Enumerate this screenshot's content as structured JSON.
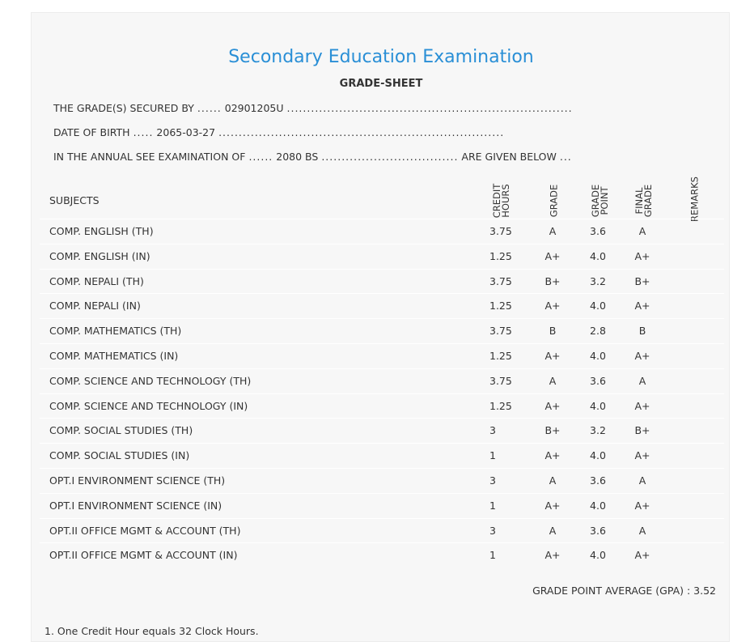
{
  "header": {
    "title": "Secondary Education Examination",
    "subtitle": "GRADE-SHEET"
  },
  "info": {
    "secured_by_label": "THE GRADE(S) SECURED BY",
    "symbol_no": "02901205U",
    "dob_label": "DATE OF BIRTH",
    "dob": "2065-03-27",
    "exam_label": "IN THE ANNUAL SEE EXAMINATION OF",
    "exam_year": "2080 BS",
    "given_below": "ARE GIVEN BELOW"
  },
  "table": {
    "headers": {
      "subjects": "SUBJECTS",
      "credit_hours": "CREDIT HOURS",
      "grade": "GRADE",
      "grade_point": "GRADE POINT",
      "final_grade": "FINAL GRADE",
      "remarks": "REMARKS"
    },
    "rows": [
      {
        "subject": "COMP. ENGLISH (TH)",
        "credit": "3.75",
        "grade": "A",
        "gp": "3.6",
        "final": "A"
      },
      {
        "subject": "COMP. ENGLISH (IN)",
        "credit": "1.25",
        "grade": "A+",
        "gp": "4.0",
        "final": "A+"
      },
      {
        "subject": "COMP. NEPALI (TH)",
        "credit": "3.75",
        "grade": "B+",
        "gp": "3.2",
        "final": "B+"
      },
      {
        "subject": "COMP. NEPALI (IN)",
        "credit": "1.25",
        "grade": "A+",
        "gp": "4.0",
        "final": "A+"
      },
      {
        "subject": "COMP. MATHEMATICS (TH)",
        "credit": "3.75",
        "grade": "B",
        "gp": "2.8",
        "final": "B"
      },
      {
        "subject": "COMP. MATHEMATICS (IN)",
        "credit": "1.25",
        "grade": "A+",
        "gp": "4.0",
        "final": "A+"
      },
      {
        "subject": "COMP. SCIENCE AND TECHNOLOGY (TH)",
        "credit": "3.75",
        "grade": "A",
        "gp": "3.6",
        "final": "A"
      },
      {
        "subject": "COMP. SCIENCE AND TECHNOLOGY (IN)",
        "credit": "1.25",
        "grade": "A+",
        "gp": "4.0",
        "final": "A+"
      },
      {
        "subject": "COMP. SOCIAL STUDIES (TH)",
        "credit": "3",
        "grade": "B+",
        "gp": "3.2",
        "final": "B+"
      },
      {
        "subject": "COMP. SOCIAL STUDIES (IN)",
        "credit": "1",
        "grade": "A+",
        "gp": "4.0",
        "final": "A+"
      },
      {
        "subject": "OPT.I ENVIRONMENT SCIENCE (TH)",
        "credit": "3",
        "grade": "A",
        "gp": "3.6",
        "final": "A"
      },
      {
        "subject": "OPT.I ENVIRONMENT SCIENCE (IN)",
        "credit": "1",
        "grade": "A+",
        "gp": "4.0",
        "final": "A+"
      },
      {
        "subject": "OPT.II OFFICE MGMT & ACCOUNT (TH)",
        "credit": "3",
        "grade": "A",
        "gp": "3.6",
        "final": "A"
      },
      {
        "subject": "OPT.II OFFICE MGMT & ACCOUNT (IN)",
        "credit": "1",
        "grade": "A+",
        "gp": "4.0",
        "final": "A+"
      }
    ]
  },
  "footer": {
    "gpa": "GRADE POINT AVERAGE (GPA) : 3.52",
    "note": "1. One Credit Hour equals 32 Clock Hours."
  }
}
